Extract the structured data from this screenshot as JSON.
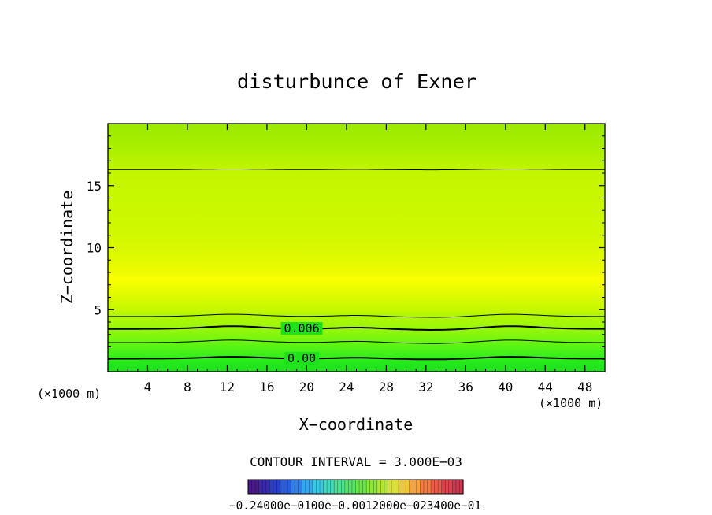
{
  "chart_data": {
    "type": "heatmap",
    "title": "disturbunce of Exner",
    "xlabel": "X−coordinate",
    "ylabel": "Z−coordinate",
    "x_unit_left": "(×1000 m)",
    "x_unit_right": "(×1000 m)",
    "xlim": [
      0,
      50
    ],
    "ylim": [
      0,
      20
    ],
    "x_ticks": [
      4,
      8,
      12,
      16,
      20,
      24,
      28,
      32,
      36,
      40,
      44,
      48
    ],
    "x_tick_labels": [
      "4",
      "8",
      "12",
      "16",
      "20",
      "24",
      "28",
      "32",
      "36",
      "40",
      "44",
      "48"
    ],
    "y_ticks": [
      5,
      10,
      15
    ],
    "y_tick_labels": [
      "5",
      "10",
      "15"
    ],
    "z_profile": {
      "z": [
        0.0,
        0.5,
        1.0,
        1.4,
        2.0,
        2.5,
        3.0,
        3.6,
        4.0,
        4.6,
        5.0,
        6.0,
        7.0,
        7.5,
        8.0,
        9.0,
        10.0,
        11.0,
        12.0,
        13.0,
        14.0,
        15.0,
        16.3,
        17.0,
        18.0,
        19.0,
        20.0
      ],
      "color": [
        "#1ee21c",
        "#22e51e",
        "#2aee18",
        "#3ef01a",
        "#56f314",
        "#6ff611",
        "#86f60c",
        "#9bf709",
        "#a6f706",
        "#b4f703",
        "#c6f800",
        "#dafa00",
        "#f2ff00",
        "#fbff00",
        "#eefb00",
        "#e2fa00",
        "#d8f900",
        "#d2f800",
        "#cdf800",
        "#caf800",
        "#c8f800",
        "#c6f700",
        "#c1f600",
        "#b6f200",
        "#abef00",
        "#a2ec00",
        "#9be900"
      ]
    },
    "contours": [
      {
        "level": 0.0,
        "label": "0.00",
        "bold": true,
        "z_base": 1.05,
        "amp": 0.15
      },
      {
        "level": 0.003,
        "bold": false,
        "z_base": 2.35,
        "amp": 0.2
      },
      {
        "level": 0.006,
        "label": "0.006",
        "bold": true,
        "z_base": 3.45,
        "amp": 0.22
      },
      {
        "level": 0.009,
        "bold": false,
        "z_base": 4.45,
        "amp": 0.18
      },
      {
        "level": 0.003,
        "bold": false,
        "z_base": 16.3,
        "amp": 0.05
      }
    ],
    "contour_interval_text": "CONTOUR INTERVAL = 3.000E−03",
    "colorbar": {
      "colors": [
        "#4a1a8a",
        "#3b2aa8",
        "#2b3ec8",
        "#2a5ce0",
        "#2f80ea",
        "#34a7ee",
        "#3cc7e2",
        "#45d8bf",
        "#4fe096",
        "#58e26a",
        "#6ae54a",
        "#8de63c",
        "#b3e538",
        "#d7df38",
        "#efc83a",
        "#f6a33e",
        "#f47d44",
        "#ea5c4a",
        "#db444e",
        "#c93a52"
      ],
      "labels_text": "−0.24000e−0100e−0.0012000e−023400e−01"
    }
  }
}
